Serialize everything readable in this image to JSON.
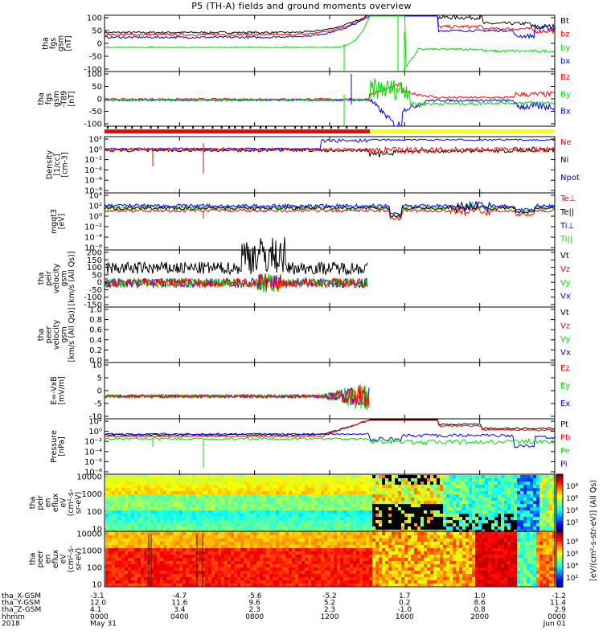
{
  "title": "P5 (TH-A) fields and ground moments overview",
  "colors": {
    "black": "#000000",
    "red": "#ff0000",
    "green": "#00dd00",
    "blue": "#0000ff",
    "yellow": "#ffff00"
  },
  "chart_data": [
    {
      "type": "line",
      "id": "fgs",
      "ylabel": [
        "tha",
        "fgs",
        "gsm",
        "[nT]"
      ],
      "yticks": [
        "100",
        "50",
        "0",
        "-50",
        "-100"
      ],
      "legend": [
        {
          "label": "Bt",
          "color": "black"
        },
        {
          "label": "bz",
          "color": "red"
        },
        {
          "label": "by",
          "color": "green"
        },
        {
          "label": "bx",
          "color": "blue"
        }
      ]
    },
    {
      "type": "line",
      "id": "fgs-dsl",
      "ylabel": [
        "tha",
        "fgs",
        "gsm",
        "-T89",
        "[nT]"
      ],
      "yticks": [
        "100",
        "50",
        "0",
        "-50",
        "-100"
      ],
      "legend": [
        {
          "label": "Bz",
          "color": "red"
        },
        {
          "label": "By",
          "color": "green"
        },
        {
          "label": "Bx",
          "color": "blue"
        }
      ]
    },
    {
      "type": "line",
      "id": "density",
      "ylabel": [
        "Density",
        "[1/cc]",
        "[cm-3]"
      ],
      "yticks": [
        "10²",
        "10⁰",
        "10⁻²",
        "10⁻⁴",
        "10⁻⁶",
        "10⁻⁸"
      ],
      "legend": [
        {
          "label": "Ne",
          "color": "red"
        },
        {
          "label": "Ni",
          "color": "black"
        },
        {
          "label": "Npot",
          "color": "blue"
        }
      ]
    },
    {
      "type": "line",
      "id": "temp",
      "ylabel": [
        "mgqt3",
        "[eV]"
      ],
      "yticks": [
        "10⁴",
        "10²",
        "10⁰",
        "10⁻²",
        "10⁻⁴",
        "10⁻⁶"
      ],
      "legend": [
        {
          "label": "Te⊥",
          "color": "red"
        },
        {
          "label": "Te||",
          "color": "black"
        },
        {
          "label": "Ti⊥",
          "color": "blue"
        },
        {
          "label": "Ti||",
          "color": "green"
        }
      ]
    },
    {
      "type": "line",
      "id": "peir-vel",
      "ylabel": [
        "tha",
        "peir",
        "velocity",
        "gsm",
        "[km/s (All Qs)]"
      ],
      "yticks": [
        "200",
        "150",
        "100",
        "50",
        "0",
        "-50",
        "-100",
        "-150"
      ],
      "legend": [
        {
          "label": "Vt",
          "color": "black"
        },
        {
          "label": "Vz",
          "color": "red"
        },
        {
          "label": "Vy",
          "color": "green"
        },
        {
          "label": "Vx",
          "color": "blue"
        }
      ]
    },
    {
      "type": "line",
      "id": "peer-vel",
      "ylabel": [
        "tha",
        "peer",
        "velocity",
        "gsm",
        "[km/s (All Qs)]"
      ],
      "yticks": [
        "1.0",
        "0.8",
        "0.6",
        "0.4",
        "0.2",
        "0.0"
      ],
      "legend": [
        {
          "label": "Vt",
          "color": "black"
        },
        {
          "label": "Vz",
          "color": "red"
        },
        {
          "label": "Vy",
          "color": "green"
        },
        {
          "label": "Vx",
          "color": "blue"
        }
      ]
    },
    {
      "type": "line",
      "id": "efield",
      "ylabel": [
        "E=-VxB",
        "[mV/m]"
      ],
      "yticks": [
        "10",
        "5",
        "0",
        "-5",
        "-10"
      ],
      "legend": [
        {
          "label": "Ez",
          "color": "red"
        },
        {
          "label": "Ey",
          "color": "green"
        },
        {
          "label": "Ex",
          "color": "blue"
        }
      ]
    },
    {
      "type": "line",
      "id": "pressure",
      "ylabel": [
        "Pressure",
        "[nPa]"
      ],
      "yticks": [
        "10²",
        "10⁰",
        "10⁻²",
        "10⁻⁴",
        "10⁻⁶",
        "10⁻⁸"
      ],
      "legend": [
        {
          "label": "Pt",
          "color": "black"
        },
        {
          "label": "Pb",
          "color": "red"
        },
        {
          "label": "Pe",
          "color": "green"
        },
        {
          "label": "Pi",
          "color": "blue"
        }
      ]
    },
    {
      "type": "heatmap",
      "id": "peir-eflux",
      "ylabel": [
        "tha",
        "peir",
        "en",
        "eflux",
        "eV",
        "(cm²-s-",
        "sr-eV)"
      ],
      "yticks": [
        "10000",
        "1000",
        "100",
        "10"
      ]
    },
    {
      "type": "heatmap",
      "id": "peer-eflux",
      "ylabel": [
        "tha",
        "peer",
        "en",
        "eflux",
        "eV",
        "(cm²-s-",
        "sr-eV)"
      ],
      "yticks": [
        "10000",
        "1000",
        "100",
        "10"
      ]
    }
  ],
  "colorbar": {
    "ticks": [
      "10⁸",
      "10⁶",
      "10⁴",
      "10²",
      "10⁸",
      "10⁶",
      "10⁴",
      "10²"
    ],
    "label": "[eV/(cm²-s-str-eV)] (All Qs)"
  },
  "xaxis": {
    "rows": [
      {
        "label": "tha_X-GSM",
        "values": [
          "-3.1",
          "-4.7",
          "-5.6",
          "-5.2",
          "1.7",
          "1.0",
          "-1.2"
        ]
      },
      {
        "label": "tha_Y-GSM",
        "values": [
          "12.0",
          "11.6",
          "9.6",
          "5.2",
          "0.2",
          "8.6",
          "11.4"
        ]
      },
      {
        "label": "tha_Z-GSM",
        "values": [
          "4.1",
          "3.4",
          "2.3",
          "2.3",
          "-1.0",
          "0.8",
          "2.9"
        ]
      },
      {
        "label": "hhmm",
        "values": [
          "0000",
          "0400",
          "0800",
          "1200",
          "1600",
          "2000",
          "0000"
        ]
      },
      {
        "label": "2018",
        "values": [
          "May 31",
          "",
          "",
          "",
          "",
          "",
          "Jun 01"
        ]
      }
    ],
    "tick_hours": [
      0,
      4,
      8,
      12,
      16,
      20,
      24
    ]
  }
}
